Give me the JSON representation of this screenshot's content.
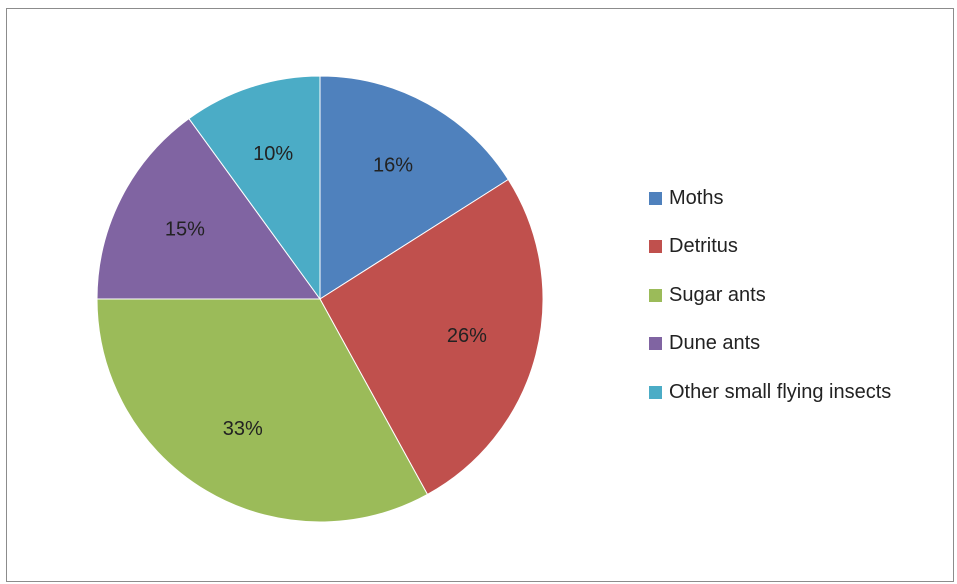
{
  "chart_data": {
    "type": "pie",
    "title": "",
    "categories": [
      "Moths",
      "Detritus",
      "Sugar ants",
      "Dune ants",
      "Other small flying insects"
    ],
    "values": [
      16,
      26,
      33,
      15,
      10
    ],
    "labels": [
      "16%",
      "26%",
      "33%",
      "15%",
      "10%"
    ],
    "colors": [
      "#4f81bd",
      "#c0504d",
      "#9bbb59",
      "#8064a2",
      "#4bacc6"
    ],
    "legend_position": "right",
    "start_angle": "12 o'clock",
    "direction": "clockwise"
  },
  "legend": {
    "items": [
      {
        "label": "Moths",
        "color": "#4f81bd"
      },
      {
        "label": "Detritus",
        "color": "#c0504d"
      },
      {
        "label": "Sugar ants",
        "color": "#9bbb59"
      },
      {
        "label": "Dune ants",
        "color": "#8064a2"
      },
      {
        "label": "Other small flying insects",
        "color": "#4bacc6"
      }
    ]
  }
}
